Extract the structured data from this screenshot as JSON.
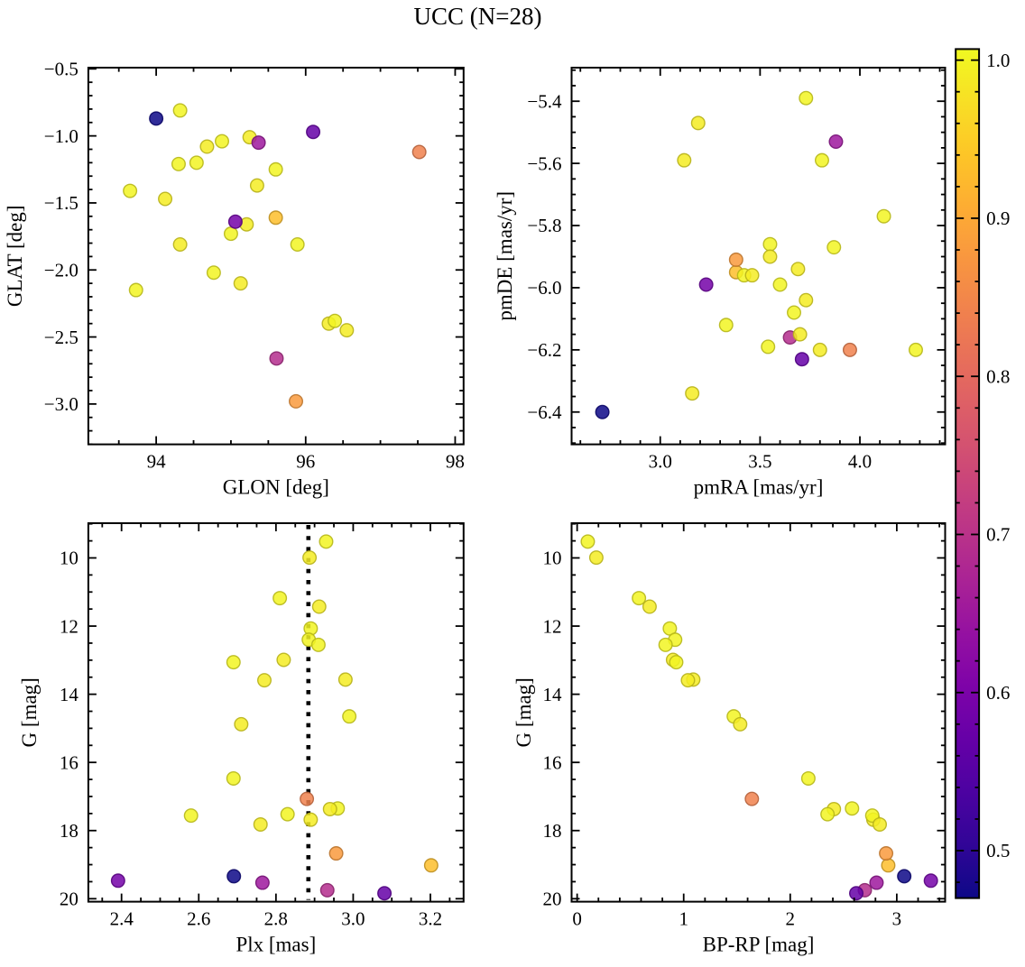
{
  "title": "UCC (N=28)",
  "chart_data": {
    "type": "scatter",
    "title": "UCC (N=28)",
    "n_members": 28,
    "legend": "none",
    "grid": false,
    "color_encoding": {
      "colormap": "plasma",
      "field": "prob",
      "vmin": 0.47,
      "vmax": 1.007,
      "colorbar_tick_labels": [
        "0.5",
        "0.6",
        "0.7",
        "0.8",
        "0.9",
        "1.0"
      ],
      "colorbar_tick_values": [
        0.5,
        0.6,
        0.7,
        0.8,
        0.9,
        1.0
      ],
      "colorbar_minor_step": 0.02
    },
    "panels": [
      {
        "id": "glon-glat",
        "xlabel": "GLON [deg]",
        "ylabel": "GLAT [deg]",
        "x_field": "glon",
        "y_field": "glat",
        "xlim": [
          93.092,
          98.113
        ],
        "ylim": [
          -0.491,
          -3.301
        ],
        "xticks": {
          "values": [
            94,
            96,
            98
          ],
          "labels": [
            "94",
            "96",
            "98"
          ],
          "minor_step": 0.5
        },
        "yticks": {
          "values": [
            -0.5,
            -1.0,
            -1.5,
            -2.0,
            -2.5,
            -3.0
          ],
          "labels": [
            "−0.5",
            "−1.0",
            "−1.5",
            "−2.0",
            "−2.5",
            "−3.0"
          ],
          "minor_step": 0.1
        }
      },
      {
        "id": "pmra-pmde",
        "xlabel": "pmRA [mas/yr]",
        "ylabel": "pmDE [mas/yr]",
        "x_field": "pmra",
        "y_field": "pmde",
        "xlim": [
          2.556,
          4.427
        ],
        "ylim": [
          -5.292,
          -6.504
        ],
        "xticks": {
          "values": [
            3.0,
            3.5,
            4.0
          ],
          "labels": [
            "3.0",
            "3.5",
            "4.0"
          ],
          "minor_step": 0.1
        },
        "yticks": {
          "values": [
            -5.4,
            -5.6,
            -5.8,
            -6.0,
            -6.2,
            -6.4
          ],
          "labels": [
            "−5.4",
            "−5.6",
            "−5.8",
            "−6.0",
            "−6.2",
            "−6.4"
          ],
          "minor_step": 0.05
        }
      },
      {
        "id": "plx-g",
        "xlabel": "Plx [mas]",
        "ylabel": "G [mag]",
        "x_field": "plx",
        "y_field": "g",
        "xlim": [
          2.314,
          3.286
        ],
        "ylim": [
          8.981,
          20.087
        ],
        "xticks": {
          "values": [
            2.4,
            2.6,
            2.8,
            3.0,
            3.2
          ],
          "labels": [
            "2.4",
            "2.6",
            "2.8",
            "3.0",
            "3.2"
          ],
          "minor_step": 0.05
        },
        "yticks": {
          "values": [
            10,
            12,
            14,
            16,
            18,
            20
          ],
          "labels": [
            "10",
            "12",
            "14",
            "16",
            "18",
            "20"
          ],
          "minor_step": 0.5
        },
        "ref_line": {
          "x": 2.884,
          "style": "dotted",
          "color": "#000000"
        }
      },
      {
        "id": "bprp-g",
        "xlabel": "BP-RP [mag]",
        "ylabel": "G [mag]",
        "x_field": "bprp",
        "y_field": "g",
        "xlim": [
          -0.052,
          3.454
        ],
        "ylim": [
          8.981,
          20.087
        ],
        "xticks": {
          "values": [
            0,
            1,
            2,
            3
          ],
          "labels": [
            "0",
            "1",
            "2",
            "3"
          ],
          "minor_step": 0.2
        },
        "yticks": {
          "values": [
            10,
            12,
            14,
            16,
            18,
            20
          ],
          "labels": [
            "10",
            "12",
            "14",
            "16",
            "18",
            "20"
          ],
          "minor_step": 0.5
        }
      }
    ],
    "stars": [
      {
        "glon": 95.61,
        "glat": -2.66,
        "pmra": 3.65,
        "pmde": -6.16,
        "plx": 2.933,
        "g": 19.75,
        "bprp": 2.7,
        "prob": 0.69
      },
      {
        "glon": 95.6,
        "glat": -1.61,
        "pmra": 3.38,
        "pmde": -5.95,
        "plx": 3.202,
        "g": 19.02,
        "bprp": 2.92,
        "prob": 0.93
      },
      {
        "glon": 94.32,
        "glat": -0.81,
        "pmra": 3.73,
        "pmde": -5.39,
        "plx": 2.93,
        "g": 9.52,
        "bprp": 0.1,
        "prob": 1.0
      },
      {
        "glon": 94.68,
        "glat": -1.08,
        "pmra": 3.19,
        "pmde": -5.47,
        "plx": 2.887,
        "g": 9.99,
        "bprp": 0.18,
        "prob": 0.99
      },
      {
        "glon": 94.88,
        "glat": -1.04,
        "pmra": 3.81,
        "pmde": -5.59,
        "plx": 2.81,
        "g": 11.18,
        "bprp": 0.58,
        "prob": 1.0
      },
      {
        "glon": 95.25,
        "glat": -1.01,
        "pmra": 3.12,
        "pmde": -5.59,
        "plx": 2.912,
        "g": 11.43,
        "bprp": 0.68,
        "prob": 0.99
      },
      {
        "glon": 94.3,
        "glat": -1.21,
        "pmra": 4.12,
        "pmde": -5.77,
        "plx": 2.89,
        "g": 12.07,
        "bprp": 0.87,
        "prob": 1.0
      },
      {
        "glon": 94.54,
        "glat": -1.2,
        "pmra": 3.87,
        "pmde": -5.87,
        "plx": 2.885,
        "g": 12.4,
        "bprp": 0.92,
        "prob": 1.0
      },
      {
        "glon": 95.6,
        "glat": -1.25,
        "pmra": 3.55,
        "pmde": -5.86,
        "plx": 2.91,
        "g": 12.55,
        "bprp": 0.83,
        "prob": 1.0
      },
      {
        "glon": 95.35,
        "glat": -1.37,
        "pmra": 3.55,
        "pmde": -5.9,
        "plx": 2.82,
        "g": 12.99,
        "bprp": 0.9,
        "prob": 0.99
      },
      {
        "glon": 93.65,
        "glat": -1.41,
        "pmra": 3.42,
        "pmde": -5.96,
        "plx": 2.69,
        "g": 13.06,
        "bprp": 0.93,
        "prob": 1.0
      },
      {
        "glon": 94.12,
        "glat": -1.47,
        "pmra": 3.46,
        "pmde": -5.96,
        "plx": 2.98,
        "g": 13.57,
        "bprp": 1.09,
        "prob": 0.99
      },
      {
        "glon": 95.21,
        "glat": -1.66,
        "pmra": 3.69,
        "pmde": -5.94,
        "plx": 2.77,
        "g": 13.59,
        "bprp": 1.04,
        "prob": 0.99
      },
      {
        "glon": 95.0,
        "glat": -1.73,
        "pmra": 3.6,
        "pmde": -5.99,
        "plx": 2.99,
        "g": 14.65,
        "bprp": 1.47,
        "prob": 1.0
      },
      {
        "glon": 94.32,
        "glat": -1.81,
        "pmra": 3.73,
        "pmde": -6.04,
        "plx": 2.71,
        "g": 14.88,
        "bprp": 1.53,
        "prob": 0.99
      },
      {
        "glon": 95.89,
        "glat": -1.81,
        "pmra": 3.67,
        "pmde": -6.08,
        "plx": 2.69,
        "g": 16.47,
        "bprp": 2.17,
        "prob": 1.0
      },
      {
        "glon": 94.77,
        "glat": -2.02,
        "pmra": 3.33,
        "pmde": -6.12,
        "plx": 2.96,
        "g": 17.35,
        "bprp": 2.58,
        "prob": 1.0
      },
      {
        "glon": 95.13,
        "glat": -2.1,
        "pmra": 3.7,
        "pmde": -6.15,
        "plx": 2.94,
        "g": 17.37,
        "bprp": 2.41,
        "prob": 0.99
      },
      {
        "glon": 93.73,
        "glat": -2.15,
        "pmra": 3.54,
        "pmde": -6.19,
        "plx": 2.83,
        "g": 17.52,
        "bprp": 2.35,
        "prob": 1.0
      },
      {
        "glon": 96.31,
        "glat": -2.4,
        "pmra": 3.8,
        "pmde": -6.2,
        "plx": 2.89,
        "g": 17.68,
        "bprp": 2.78,
        "prob": 0.99
      },
      {
        "glon": 96.39,
        "glat": -2.38,
        "pmra": 4.28,
        "pmde": -6.2,
        "plx": 2.58,
        "g": 17.56,
        "bprp": 2.77,
        "prob": 1.0
      },
      {
        "glon": 96.55,
        "glat": -2.45,
        "pmra": 3.16,
        "pmde": -6.34,
        "plx": 2.76,
        "g": 17.82,
        "bprp": 2.84,
        "prob": 0.99
      },
      {
        "glon": 95.87,
        "glat": -2.98,
        "pmra": 3.38,
        "pmde": -5.91,
        "plx": 2.956,
        "g": 18.67,
        "bprp": 2.9,
        "prob": 0.88
      },
      {
        "glon": 97.52,
        "glat": -1.12,
        "pmra": 3.95,
        "pmde": -6.2,
        "plx": 2.88,
        "g": 17.07,
        "bprp": 1.64,
        "prob": 0.84
      },
      {
        "glon": 95.37,
        "glat": -1.05,
        "pmra": 3.88,
        "pmde": -5.53,
        "plx": 2.765,
        "g": 19.53,
        "bprp": 2.81,
        "prob": 0.65
      },
      {
        "glon": 95.06,
        "glat": -1.64,
        "pmra": 3.23,
        "pmde": -5.99,
        "plx": 2.391,
        "g": 19.47,
        "bprp": 3.32,
        "prob": 0.59
      },
      {
        "glon": 96.1,
        "glat": -0.97,
        "pmra": 3.71,
        "pmde": -6.23,
        "plx": 3.081,
        "g": 19.84,
        "bprp": 2.62,
        "prob": 0.57
      },
      {
        "glon": 94.0,
        "glat": -0.87,
        "pmra": 2.71,
        "pmde": -6.4,
        "plx": 2.691,
        "g": 19.34,
        "bprp": 3.07,
        "prob": 0.47
      }
    ]
  },
  "style": {
    "plasma_lut": [
      "#0d0887",
      "#310597",
      "#4c02a1",
      "#6600a7",
      "#7e03a8",
      "#9511a1",
      "#aa2395",
      "#bc3587",
      "#cc4778",
      "#da5a6a",
      "#e66c5c",
      "#f0804e",
      "#f89540",
      "#fdac33",
      "#fdc527",
      "#f8df25",
      "#f0f921"
    ],
    "background": "#ffffff",
    "axis_color": "#000000",
    "text_color": "#000000"
  }
}
